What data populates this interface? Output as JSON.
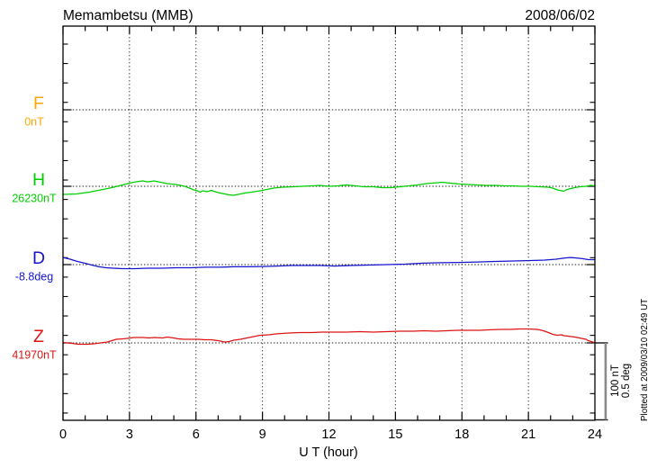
{
  "header": {
    "title": "Memambetsu (MMB)",
    "date": "2008/06/02"
  },
  "footer": {
    "plotted_at": "Plotted at 2009/03/10 02:49 UT"
  },
  "scale_bar": {
    "line1": "100 nT",
    "line2": "0.5 deg"
  },
  "chart_data": {
    "type": "line",
    "title": "Memambetsu (MMB)",
    "date": "2008/06/02",
    "xlabel": "U T (hour)",
    "x_range": [
      0,
      24
    ],
    "x_ticks": [
      0,
      3,
      6,
      9,
      12,
      15,
      18,
      21,
      24
    ],
    "x_gridlines": [
      3,
      6,
      9,
      12,
      15,
      18,
      21
    ],
    "grid": "dotted",
    "scale": {
      "nT_per_division": 100,
      "deg_per_division": 0.5
    },
    "series": [
      {
        "name": "F",
        "unit": "nT",
        "baseline_label": "0nT",
        "baseline_value": 0,
        "color": "#FFA500",
        "offset_unit": "nT",
        "points": []
      },
      {
        "name": "H",
        "unit": "nT",
        "baseline_label": "26230nT",
        "baseline_value": 26230,
        "color": "#00CE00",
        "offset_unit": "nT",
        "points": [
          [
            0.0,
            -10.4
          ],
          [
            0.6,
            -9.9
          ],
          [
            1.2,
            -7.5
          ],
          [
            1.8,
            -4.1
          ],
          [
            2.2,
            -1.7
          ],
          [
            2.6,
            1.2
          ],
          [
            3.0,
            4.1
          ],
          [
            3.3,
            5.8
          ],
          [
            3.6,
            7.0
          ],
          [
            3.8,
            5.8
          ],
          [
            4.0,
            6.4
          ],
          [
            4.1,
            7.0
          ],
          [
            4.4,
            5.2
          ],
          [
            4.7,
            3.5
          ],
          [
            5.1,
            2.3
          ],
          [
            5.5,
            0.0
          ],
          [
            5.7,
            -2.3
          ],
          [
            5.9,
            -4.6
          ],
          [
            6.0,
            -5.2
          ],
          [
            6.2,
            -7.5
          ],
          [
            6.3,
            -5.8
          ],
          [
            6.5,
            -7.0
          ],
          [
            6.7,
            -5.2
          ],
          [
            6.8,
            -6.4
          ],
          [
            7.0,
            -8.1
          ],
          [
            7.2,
            -9.3
          ],
          [
            7.5,
            -11.0
          ],
          [
            7.7,
            -11.6
          ],
          [
            8.0,
            -9.8
          ],
          [
            8.2,
            -8.7
          ],
          [
            8.5,
            -7.5
          ],
          [
            8.9,
            -5.8
          ],
          [
            9.2,
            -4.1
          ],
          [
            9.5,
            -2.3
          ],
          [
            9.9,
            -1.2
          ],
          [
            10.4,
            -0.6
          ],
          [
            10.8,
            0.0
          ],
          [
            11.2,
            0.6
          ],
          [
            11.6,
            1.2
          ],
          [
            12.0,
            0.0
          ],
          [
            12.4,
            0.6
          ],
          [
            12.8,
            1.7
          ],
          [
            13.2,
            0.6
          ],
          [
            13.6,
            -0.6
          ],
          [
            14.0,
            -0.6
          ],
          [
            14.4,
            -1.7
          ],
          [
            14.8,
            -1.7
          ],
          [
            15.2,
            -0.6
          ],
          [
            15.6,
            0.6
          ],
          [
            16.0,
            1.7
          ],
          [
            16.4,
            3.5
          ],
          [
            16.9,
            4.6
          ],
          [
            17.1,
            5.2
          ],
          [
            17.5,
            4.1
          ],
          [
            17.9,
            2.9
          ],
          [
            18.3,
            2.3
          ],
          [
            18.7,
            1.7
          ],
          [
            19.1,
            1.2
          ],
          [
            19.5,
            1.2
          ],
          [
            19.9,
            0.6
          ],
          [
            20.3,
            0.6
          ],
          [
            20.7,
            0.0
          ],
          [
            21.1,
            0.0
          ],
          [
            21.5,
            -0.6
          ],
          [
            21.9,
            -1.2
          ],
          [
            22.1,
            -2.3
          ],
          [
            22.3,
            -4.6
          ],
          [
            22.5,
            -5.8
          ],
          [
            22.6,
            -6.4
          ],
          [
            22.7,
            -4.6
          ],
          [
            22.9,
            -2.9
          ],
          [
            23.1,
            -1.7
          ],
          [
            23.3,
            -0.6
          ],
          [
            23.6,
            0.0
          ],
          [
            23.8,
            1.2
          ],
          [
            24.0,
            0.6
          ]
        ]
      },
      {
        "name": "D",
        "unit": "deg",
        "baseline_label": "-8.8deg",
        "baseline_value": -8.8,
        "color": "#1515CD",
        "offset_unit": "deg",
        "points": [
          [
            0.0,
            0.046
          ],
          [
            0.32,
            0.035
          ],
          [
            0.65,
            0.02
          ],
          [
            0.97,
            0.009
          ],
          [
            1.3,
            -0.003
          ],
          [
            1.62,
            -0.014
          ],
          [
            1.95,
            -0.02
          ],
          [
            2.27,
            -0.023
          ],
          [
            2.68,
            -0.026
          ],
          [
            3.25,
            -0.026
          ],
          [
            3.82,
            -0.023
          ],
          [
            4.47,
            -0.023
          ],
          [
            5.12,
            -0.02
          ],
          [
            5.77,
            -0.02
          ],
          [
            6.42,
            -0.017
          ],
          [
            7.07,
            -0.017
          ],
          [
            7.71,
            -0.014
          ],
          [
            8.36,
            -0.014
          ],
          [
            9.01,
            -0.012
          ],
          [
            9.67,
            -0.009
          ],
          [
            10.31,
            -0.006
          ],
          [
            10.96,
            -0.006
          ],
          [
            11.61,
            -0.006
          ],
          [
            12.26,
            -0.009
          ],
          [
            13.0,
            -0.006
          ],
          [
            13.8,
            -0.003
          ],
          [
            14.62,
            0.0
          ],
          [
            15.43,
            0.003
          ],
          [
            16.24,
            0.009
          ],
          [
            17.06,
            0.012
          ],
          [
            17.87,
            0.014
          ],
          [
            18.68,
            0.017
          ],
          [
            19.49,
            0.02
          ],
          [
            20.3,
            0.023
          ],
          [
            21.12,
            0.026
          ],
          [
            21.73,
            0.029
          ],
          [
            22.25,
            0.035
          ],
          [
            22.66,
            0.043
          ],
          [
            22.9,
            0.046
          ],
          [
            23.15,
            0.043
          ],
          [
            23.43,
            0.038
          ],
          [
            23.71,
            0.032
          ],
          [
            24.0,
            0.032
          ]
        ]
      },
      {
        "name": "Z",
        "unit": "nT",
        "baseline_label": "41970nT",
        "baseline_value": 41970,
        "color": "#DC1414",
        "offset_unit": "nT",
        "points": [
          [
            0.0,
            0.6
          ],
          [
            0.4,
            -0.6
          ],
          [
            0.7,
            -1.7
          ],
          [
            1.1,
            -1.7
          ],
          [
            1.4,
            -1.2
          ],
          [
            1.7,
            0.0
          ],
          [
            2.0,
            1.2
          ],
          [
            2.2,
            2.9
          ],
          [
            2.4,
            4.6
          ],
          [
            2.7,
            5.2
          ],
          [
            2.9,
            5.8
          ],
          [
            3.2,
            7.0
          ],
          [
            3.6,
            7.0
          ],
          [
            3.9,
            6.4
          ],
          [
            4.1,
            7.0
          ],
          [
            4.5,
            6.4
          ],
          [
            4.7,
            7.5
          ],
          [
            5.0,
            6.4
          ],
          [
            5.2,
            5.2
          ],
          [
            5.5,
            4.6
          ],
          [
            5.8,
            4.6
          ],
          [
            6.1,
            4.6
          ],
          [
            6.4,
            4.0
          ],
          [
            6.7,
            4.0
          ],
          [
            7.0,
            2.9
          ],
          [
            7.3,
            1.2
          ],
          [
            7.5,
            1.7
          ],
          [
            7.7,
            3.5
          ],
          [
            8.0,
            4.6
          ],
          [
            8.3,
            6.4
          ],
          [
            8.6,
            8.1
          ],
          [
            8.9,
            9.8
          ],
          [
            9.3,
            10.4
          ],
          [
            9.6,
            11.6
          ],
          [
            9.9,
            12.2
          ],
          [
            10.2,
            12.7
          ],
          [
            10.7,
            13.3
          ],
          [
            11.2,
            13.3
          ],
          [
            11.7,
            13.9
          ],
          [
            12.2,
            13.9
          ],
          [
            12.8,
            13.9
          ],
          [
            13.4,
            14.5
          ],
          [
            14.0,
            13.9
          ],
          [
            14.6,
            14.5
          ],
          [
            15.2,
            15.1
          ],
          [
            15.8,
            15.1
          ],
          [
            16.3,
            15.6
          ],
          [
            16.8,
            15.1
          ],
          [
            17.3,
            15.6
          ],
          [
            17.8,
            16.2
          ],
          [
            18.3,
            16.2
          ],
          [
            18.8,
            16.2
          ],
          [
            19.2,
            16.8
          ],
          [
            19.7,
            17.4
          ],
          [
            20.2,
            17.4
          ],
          [
            20.6,
            18.0
          ],
          [
            21.0,
            18.0
          ],
          [
            21.4,
            17.4
          ],
          [
            21.6,
            16.2
          ],
          [
            21.8,
            14.5
          ],
          [
            22.0,
            12.2
          ],
          [
            22.1,
            11.0
          ],
          [
            22.3,
            9.8
          ],
          [
            22.5,
            10.4
          ],
          [
            22.6,
            9.3
          ],
          [
            22.8,
            8.7
          ],
          [
            23.1,
            7.5
          ],
          [
            23.3,
            6.4
          ],
          [
            23.6,
            4.6
          ],
          [
            23.7,
            2.9
          ],
          [
            23.9,
            1.2
          ],
          [
            24.0,
            0.0
          ]
        ]
      }
    ]
  }
}
